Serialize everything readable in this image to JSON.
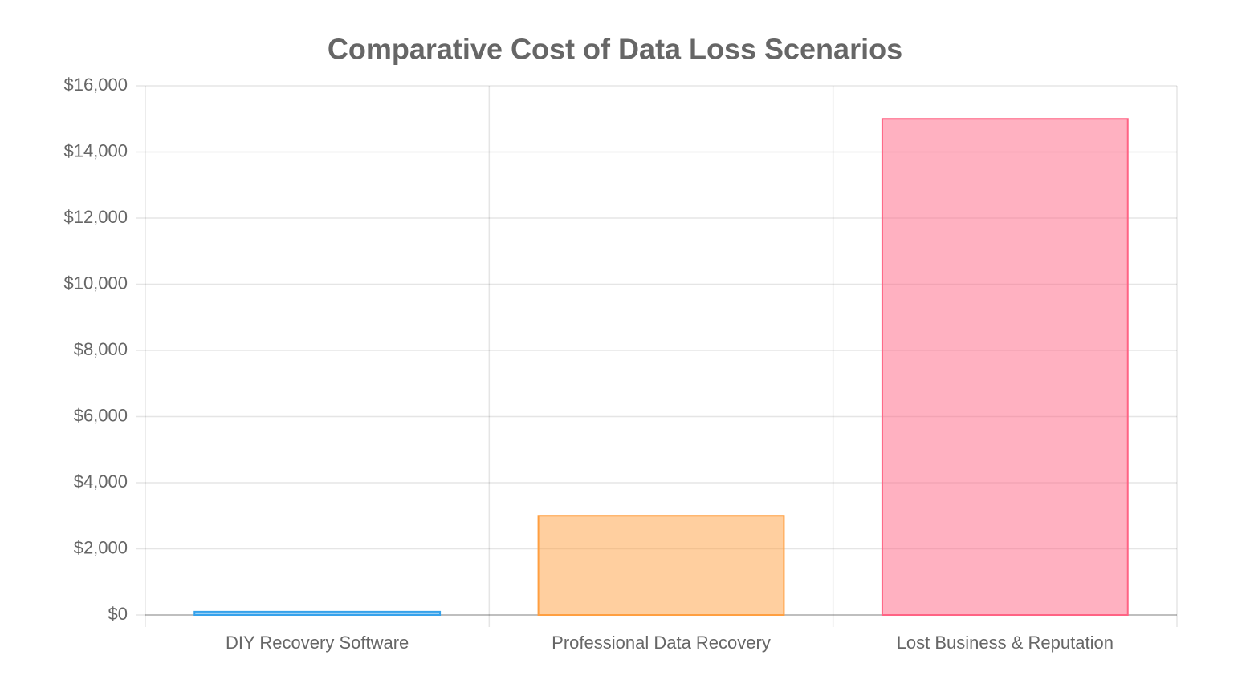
{
  "chart_data": {
    "type": "bar",
    "title": "Comparative Cost of Data Loss Scenarios",
    "categories": [
      "DIY Recovery Software",
      "Professional Data Recovery",
      "Lost Business & Reputation"
    ],
    "values": [
      100,
      3000,
      15000
    ],
    "colors": [
      "rgba(54,162,235,0.5)",
      "rgba(255,159,64,0.5)",
      "rgba(255,99,132,0.5)"
    ],
    "border_colors": [
      "rgb(54,162,235)",
      "rgb(255,159,64)",
      "rgb(255,99,132)"
    ],
    "ylim": [
      0,
      16000
    ],
    "yticks": [
      {
        "value": 0,
        "label": "$0"
      },
      {
        "value": 2000,
        "label": "$2,000"
      },
      {
        "value": 4000,
        "label": "$4,000"
      },
      {
        "value": 6000,
        "label": "$6,000"
      },
      {
        "value": 8000,
        "label": "$8,000"
      },
      {
        "value": 10000,
        "label": "$10,000"
      },
      {
        "value": 12000,
        "label": "$12,000"
      },
      {
        "value": 14000,
        "label": "$14,000"
      },
      {
        "value": 16000,
        "label": "$16,000"
      }
    ],
    "grid": true
  }
}
